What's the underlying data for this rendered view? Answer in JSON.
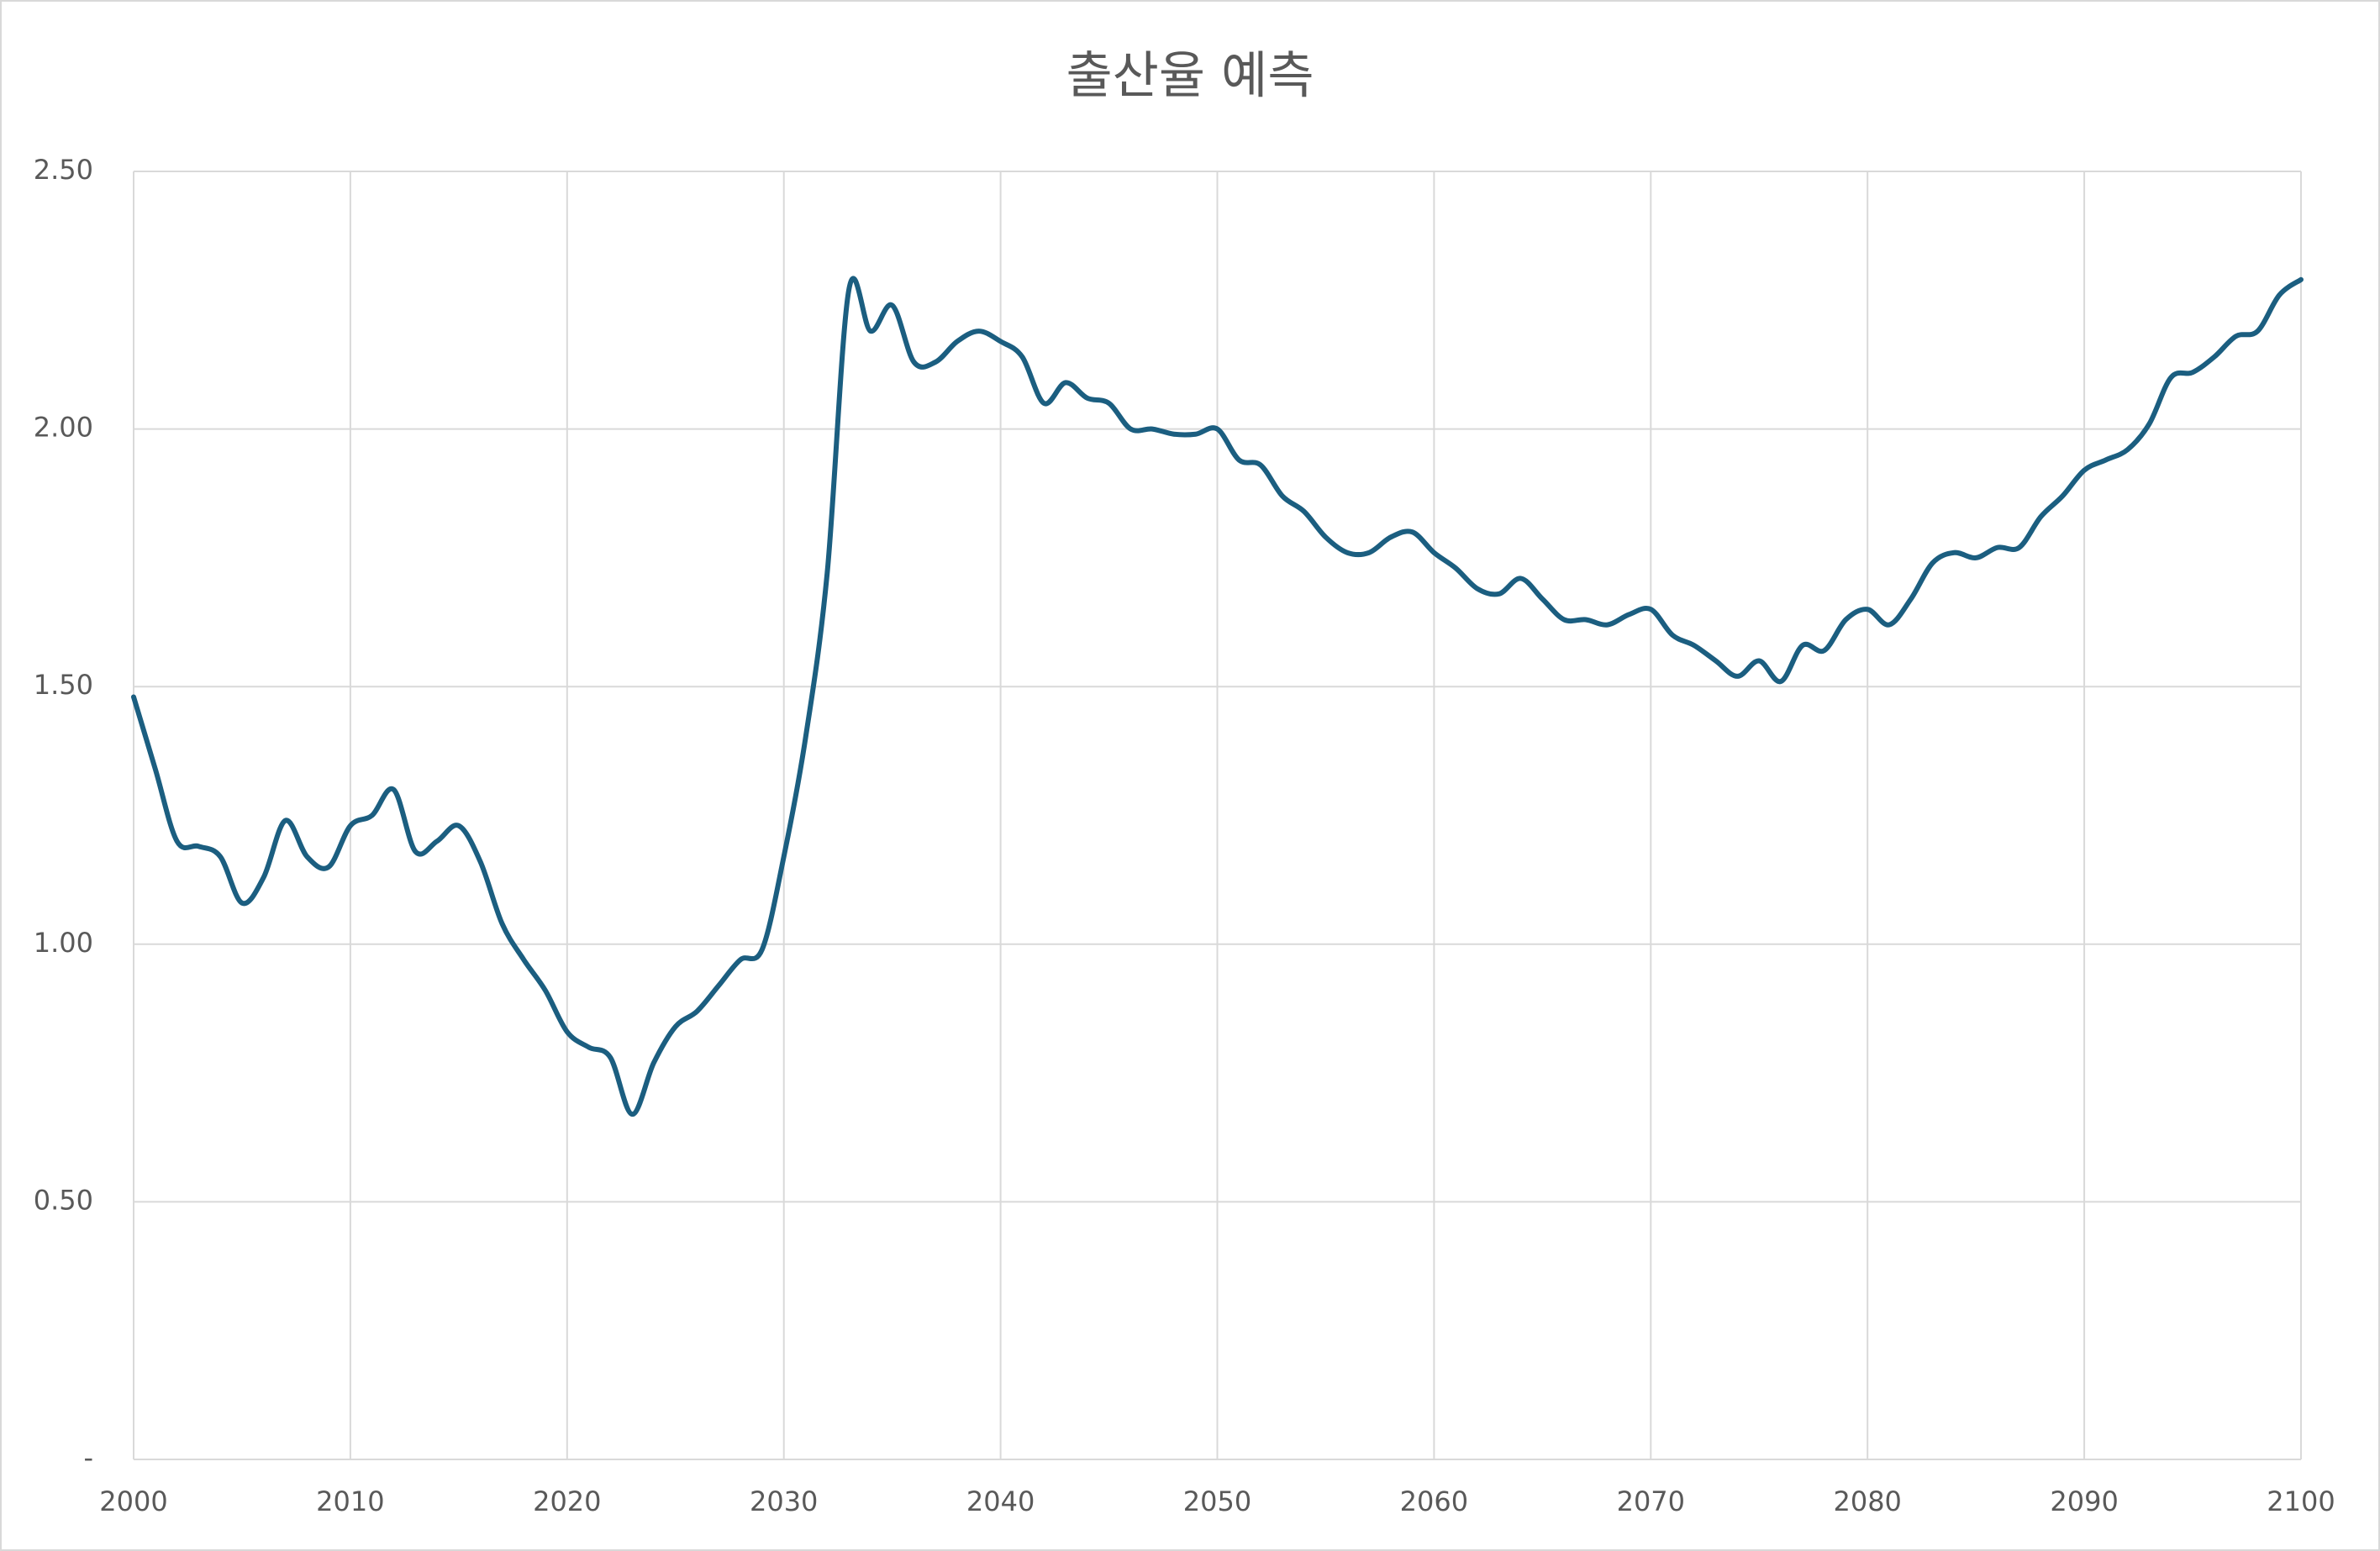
{
  "chart_data": {
    "type": "line",
    "title": "출산율 예측",
    "x": [
      2000,
      2001,
      2002,
      2003,
      2004,
      2005,
      2006,
      2007,
      2008,
      2009,
      2010,
      2011,
      2012,
      2013,
      2014,
      2015,
      2016,
      2017,
      2018,
      2019,
      2020,
      2021,
      2022,
      2023,
      2024,
      2025,
      2026,
      2027,
      2028,
      2029,
      2030,
      2031,
      2032,
      2033,
      2034,
      2035,
      2036,
      2037,
      2038,
      2039,
      2040,
      2041,
      2042,
      2043,
      2044,
      2045,
      2046,
      2047,
      2048,
      2049,
      2050,
      2051,
      2052,
      2053,
      2054,
      2055,
      2056,
      2057,
      2058,
      2059,
      2060,
      2061,
      2062,
      2063,
      2064,
      2065,
      2066,
      2067,
      2068,
      2069,
      2070,
      2071,
      2072,
      2073,
      2074,
      2075,
      2076,
      2077,
      2078,
      2079,
      2080,
      2081,
      2082,
      2083,
      2084,
      2085,
      2086,
      2087,
      2088,
      2089,
      2090,
      2091,
      2092,
      2093,
      2094,
      2095,
      2096,
      2097,
      2098,
      2099,
      2100
    ],
    "values": [
      1.48,
      1.34,
      1.2,
      1.19,
      1.17,
      1.08,
      1.13,
      1.24,
      1.17,
      1.15,
      1.23,
      1.25,
      1.3,
      1.18,
      1.2,
      1.23,
      1.16,
      1.04,
      0.97,
      0.91,
      0.83,
      0.8,
      0.78,
      0.67,
      0.77,
      0.84,
      0.87,
      0.92,
      0.97,
      0.99,
      1.17,
      1.4,
      1.72,
      2.27,
      2.19,
      2.24,
      2.13,
      2.13,
      2.17,
      2.19,
      2.17,
      2.14,
      2.05,
      2.09,
      2.06,
      2.05,
      2.0,
      2.0,
      1.99,
      1.99,
      2.0,
      1.94,
      1.93,
      1.87,
      1.84,
      1.79,
      1.76,
      1.76,
      1.79,
      1.8,
      1.76,
      1.73,
      1.69,
      1.68,
      1.71,
      1.67,
      1.63,
      1.63,
      1.62,
      1.64,
      1.65,
      1.6,
      1.58,
      1.55,
      1.52,
      1.55,
      1.51,
      1.58,
      1.57,
      1.63,
      1.65,
      1.62,
      1.67,
      1.74,
      1.76,
      1.75,
      1.77,
      1.77,
      1.83,
      1.87,
      1.92,
      1.94,
      1.96,
      2.01,
      2.1,
      2.11,
      2.14,
      2.18,
      2.19,
      2.26,
      2.29
    ],
    "color": "#1b5e80",
    "xlim": [
      2000,
      2100
    ],
    "xticks": [
      2000,
      2010,
      2020,
      2030,
      2040,
      2050,
      2060,
      2070,
      2080,
      2090,
      2100
    ],
    "ylim": [
      0,
      2.5
    ],
    "yticks": [
      {
        "value": 0,
        "label": "-"
      },
      {
        "value": 0.5,
        "label": "0.50"
      },
      {
        "value": 1,
        "label": "1.00"
      },
      {
        "value": 1.5,
        "label": "1.50"
      },
      {
        "value": 2,
        "label": "2.00"
      },
      {
        "value": 2.5,
        "label": "2.50"
      }
    ],
    "grid": true
  }
}
